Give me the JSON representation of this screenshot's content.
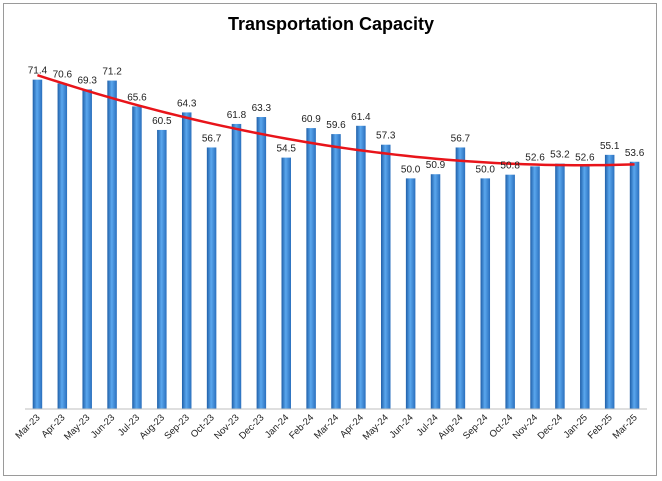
{
  "chart_data": {
    "type": "bar",
    "title": "Transportation Capacity",
    "xlabel": "",
    "ylabel": "",
    "ylim": [
      0,
      80
    ],
    "grid": false,
    "legend": "none",
    "categories": [
      "Mar-23",
      "Apr-23",
      "May-23",
      "Jun-23",
      "Jul-23",
      "Aug-23",
      "Sep-23",
      "Oct-23",
      "Nov-23",
      "Dec-23",
      "Jan-24",
      "Feb-24",
      "Mar-24",
      "Apr-24",
      "May-24",
      "Jun-24",
      "Jul-24",
      "Aug-24",
      "Sep-24",
      "Oct-24",
      "Nov-24",
      "Dec-24",
      "Jan-25",
      "Feb-25",
      "Mar-25"
    ],
    "values": [
      71.4,
      70.6,
      69.3,
      71.2,
      65.6,
      60.5,
      64.3,
      56.7,
      61.8,
      63.3,
      54.5,
      60.9,
      59.6,
      61.4,
      57.3,
      50.0,
      50.9,
      56.7,
      50.0,
      50.8,
      52.6,
      53.2,
      52.6,
      55.1,
      53.6
    ],
    "trendline": {
      "type": "polynomial",
      "color": "#e8141a"
    },
    "bar_color": "#3a86d6"
  }
}
